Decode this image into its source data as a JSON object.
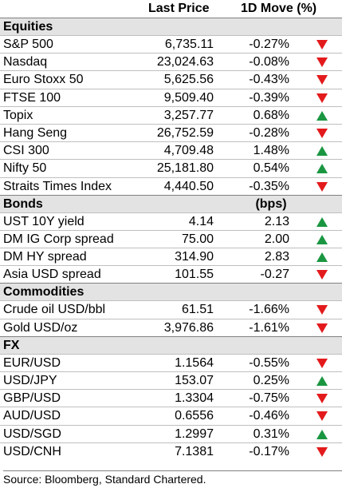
{
  "header": {
    "last_price": "Last Price",
    "move": "1D Move (%)"
  },
  "colors": {
    "up": "#1a9641",
    "down": "#e31a1c",
    "section_bg": "#e3e3e3"
  },
  "sections": [
    {
      "title": "Equities",
      "unit": "",
      "rows": [
        {
          "name": "S&P 500",
          "price": "6,735.11",
          "move": "-0.27%",
          "dir": "down"
        },
        {
          "name": "Nasdaq",
          "price": "23,024.63",
          "move": "-0.08%",
          "dir": "down"
        },
        {
          "name": "Euro Stoxx 50",
          "price": "5,625.56",
          "move": "-0.43%",
          "dir": "down"
        },
        {
          "name": "FTSE 100",
          "price": "9,509.40",
          "move": "-0.39%",
          "dir": "down"
        },
        {
          "name": "Topix",
          "price": "3,257.77",
          "move": "0.68%",
          "dir": "up"
        },
        {
          "name": "Hang Seng",
          "price": "26,752.59",
          "move": "-0.28%",
          "dir": "down"
        },
        {
          "name": "CSI 300",
          "price": "4,709.48",
          "move": "1.48%",
          "dir": "up"
        },
        {
          "name": "Nifty 50",
          "price": "25,181.80",
          "move": "0.54%",
          "dir": "up"
        },
        {
          "name": "Straits Times Index",
          "price": "4,440.50",
          "move": "-0.35%",
          "dir": "down"
        }
      ]
    },
    {
      "title": "Bonds",
      "unit": "(bps)",
      "rows": [
        {
          "name": "UST 10Y yield",
          "price": "4.14",
          "move": "2.13",
          "dir": "up"
        },
        {
          "name": "DM IG Corp spread",
          "price": "75.00",
          "move": "2.00",
          "dir": "up"
        },
        {
          "name": "DM HY spread",
          "price": "314.90",
          "move": "2.83",
          "dir": "up"
        },
        {
          "name": "Asia USD spread",
          "price": "101.55",
          "move": "-0.27",
          "dir": "down"
        }
      ]
    },
    {
      "title": "Commodities",
      "unit": "",
      "rows": [
        {
          "name": "Crude oil USD/bbl",
          "price": "61.51",
          "move": "-1.66%",
          "dir": "down"
        },
        {
          "name": "Gold USD/oz",
          "price": "3,976.86",
          "move": "-1.61%",
          "dir": "down"
        }
      ]
    },
    {
      "title": "FX",
      "unit": "",
      "rows": [
        {
          "name": "EUR/USD",
          "price": "1.1564",
          "move": "-0.55%",
          "dir": "down"
        },
        {
          "name": "USD/JPY",
          "price": "153.07",
          "move": "0.25%",
          "dir": "up"
        },
        {
          "name": "GBP/USD",
          "price": "1.3304",
          "move": "-0.75%",
          "dir": "down"
        },
        {
          "name": "AUD/USD",
          "price": "0.6556",
          "move": "-0.46%",
          "dir": "down"
        },
        {
          "name": "USD/SGD",
          "price": "1.2997",
          "move": "0.31%",
          "dir": "up"
        },
        {
          "name": "USD/CNH",
          "price": "7.1381",
          "move": "-0.17%",
          "dir": "down"
        }
      ]
    }
  ],
  "source": "Source: Bloomberg, Standard Chartered."
}
